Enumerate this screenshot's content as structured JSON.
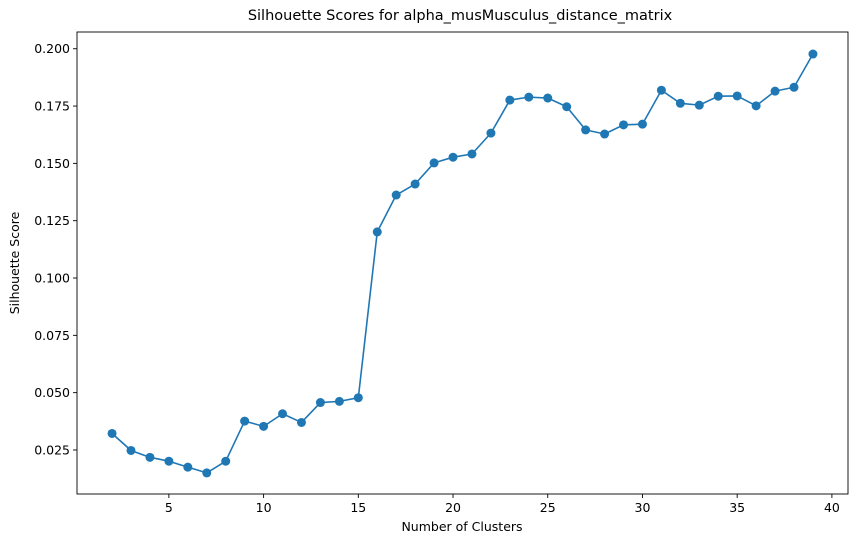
{
  "chart_data": {
    "type": "line",
    "title": "Silhouette Scores for alpha_musMusculus_distance_matrix",
    "xlabel": "Number of Clusters",
    "ylabel": "Silhouette Score",
    "xlim": [
      0.15,
      40.85
    ],
    "ylim": [
      0.0058,
      0.2073
    ],
    "xticks": [
      5,
      10,
      15,
      20,
      25,
      30,
      35,
      40
    ],
    "xtick_labels": [
      "5",
      "10",
      "15",
      "20",
      "25",
      "30",
      "35",
      "40"
    ],
    "yticks": [
      0.025,
      0.05,
      0.075,
      0.1,
      0.125,
      0.15,
      0.175,
      0.2
    ],
    "ytick_labels": [
      "0.025",
      "0.050",
      "0.075",
      "0.100",
      "0.125",
      "0.150",
      "0.175",
      "0.200"
    ],
    "grid": false,
    "marker": "circle",
    "color": "#1f77b4",
    "series": [
      {
        "x": [
          2,
          3,
          4,
          5,
          6,
          7,
          8,
          9,
          10,
          11,
          12,
          13,
          14,
          15,
          16,
          17,
          18,
          19,
          20,
          21,
          22,
          23,
          24,
          25,
          26,
          27,
          28,
          29,
          30,
          31,
          32,
          33,
          34,
          35,
          36,
          37,
          38,
          39
        ],
        "y": [
          0.0322,
          0.0248,
          0.0218,
          0.0201,
          0.0175,
          0.015,
          0.0201,
          0.0376,
          0.0353,
          0.0408,
          0.037,
          0.0457,
          0.0462,
          0.0478,
          0.1201,
          0.1362,
          0.141,
          0.1502,
          0.1527,
          0.1541,
          0.1632,
          0.1776,
          0.1789,
          0.1785,
          0.1747,
          0.1646,
          0.1628,
          0.1668,
          0.1671,
          0.1819,
          0.1762,
          0.1754,
          0.1793,
          0.1794,
          0.1751,
          0.1815,
          0.1832,
          0.1977
        ]
      }
    ]
  }
}
